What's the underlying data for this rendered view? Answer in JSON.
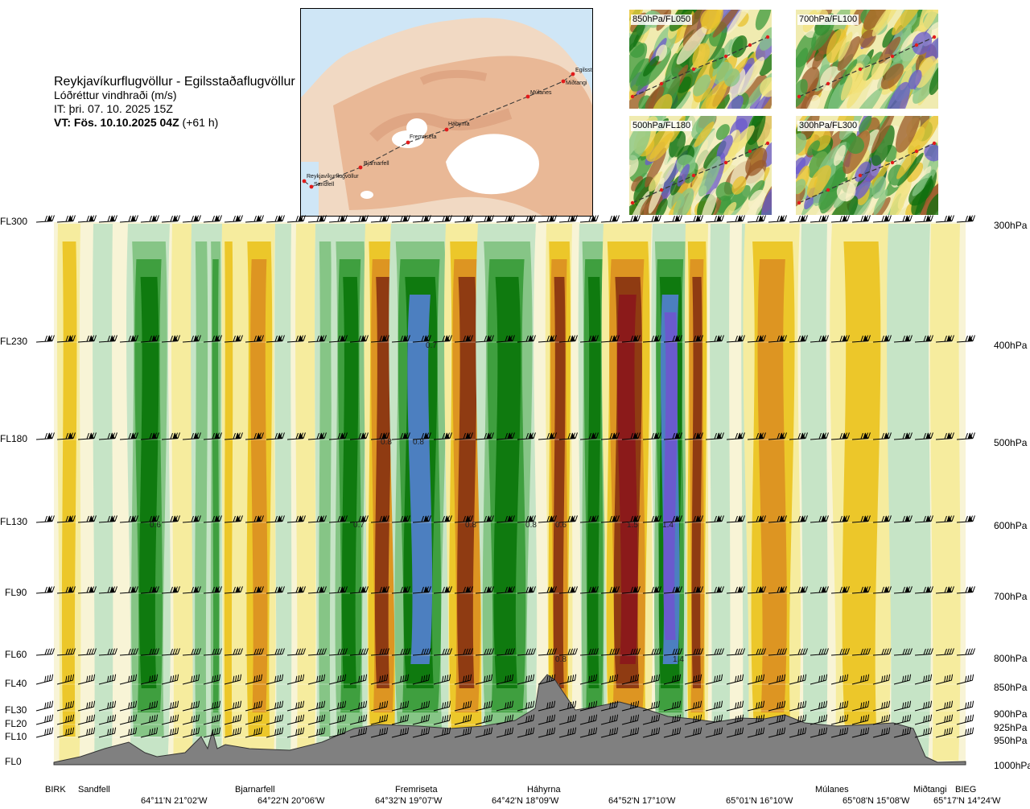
{
  "title": {
    "route": "Reykjavíkurflugvöllur - Egilsstaðaflugvöllur",
    "parameter": "Lóðréttur vindhraði (m/s)",
    "issue_time": "IT: þri. 07. 10. 2025 15Z",
    "valid_time_bold": "VT: Fös. 10.10.2025 04Z",
    "valid_time_offset": " (+61 h)"
  },
  "map": {
    "waypoints": [
      "Reykjavíkurflugvöllur",
      "Sandfell",
      "Bjarnarfell",
      "Fremriseta",
      "Háhyrna",
      "Múlanes",
      "Miðtangi",
      "Egilsst"
    ]
  },
  "panels": [
    {
      "label": "850hPa/FL050"
    },
    {
      "label": "700hPa/FL100"
    },
    {
      "label": "500hPa/FL180"
    },
    {
      "label": "300hPa/FL300"
    }
  ],
  "chart_data": {
    "type": "heatmap",
    "title": "Lóðréttur vindhraði (m/s)",
    "y_levels": [
      {
        "fl": "FL300",
        "hpa": "300hPa"
      },
      {
        "fl": "FL230",
        "hpa": "400hPa"
      },
      {
        "fl": "FL180",
        "hpa": "500hPa"
      },
      {
        "fl": "FL130",
        "hpa": "600hPa"
      },
      {
        "fl": "FL90",
        "hpa": "700hPa"
      },
      {
        "fl": "FL60",
        "hpa": "800hPa"
      },
      {
        "fl": "FL40",
        "hpa": "850hPa"
      },
      {
        "fl": "FL30",
        "hpa": "900hPa"
      },
      {
        "fl": "FL20",
        "hpa": "925hPa"
      },
      {
        "fl": "FL10",
        "hpa": "950hPa"
      },
      {
        "fl": "FL0",
        "hpa": "1000hPa"
      }
    ],
    "x_waypoints": [
      "BIRK",
      "Sandfell",
      "Bjarnarfell",
      "Fremriseta",
      "Háhyrna",
      "Múlanes",
      "Miðtangi",
      "BIEG"
    ],
    "x_coordinates": [
      "64°11'N 21°02'W",
      "64°22'N 20°06'W",
      "64°32'N 19°07'W",
      "64°42'N 18°09'W",
      "64°52'N 17°10'W",
      "65°01'N 16°10'W",
      "65°08'N 15°08'W",
      "65°17'N 14°24'W"
    ],
    "value_labels": [
      "0.7",
      "0.8",
      "0.6",
      "0.7",
      "0.8",
      "0.8",
      "0.6",
      "0.8",
      "1.5",
      "1.4",
      "0.8",
      "1.4"
    ],
    "colors": {
      "strong_down": "#6a5acd",
      "down_blue": "#4c7fc0",
      "down_dark_green": "#0f7a0f",
      "down_green": "#3f9f3f",
      "down_mid_green": "#86c586",
      "down_light_green": "#c6e4c6",
      "neutral": "#f8f4d6",
      "up_light_yellow": "#f6ec9e",
      "up_yellow": "#ecc72a",
      "up_orange": "#dd9522",
      "up_brown": "#8f3b12",
      "up_dark_red": "#8b1a1a",
      "terrain": "#808080"
    }
  }
}
